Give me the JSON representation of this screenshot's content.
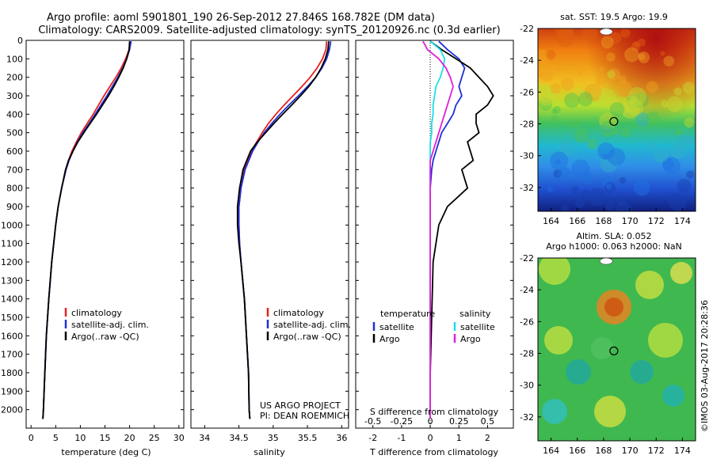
{
  "header": {
    "line1": "Argo profile: aoml 5901801_190 26-Sep-2012 27.846S 168.782E (DM data)",
    "line2": "Climatology: CARS2009. Satellite-adjusted climatology: synTS_20120926.nc (0.3d earlier)"
  },
  "credit": "US ARGO PROJECT\nPI: DEAN ROEMMICH",
  "credit_lines": [
    "US ARGO PROJECT",
    "PI: DEAN ROEMMICH"
  ],
  "timestamp": "©IMOS 03-Aug-2017 20:28:36",
  "colors": {
    "climatology": "#e8201c",
    "satellite_temp": "#1f2fd6",
    "argo": "#000000",
    "satellite_sal": "#19e0e8",
    "argo_sal": "#e020d8"
  },
  "chart_data": [
    {
      "type": "line",
      "ylim": [
        2100,
        0
      ],
      "ylabel": "",
      "xlabel": "temperature (deg C)",
      "xlim": [
        -1,
        31
      ],
      "xticks": [
        0,
        5,
        10,
        15,
        20,
        25,
        30
      ],
      "yticks": [
        0,
        100,
        200,
        300,
        400,
        500,
        600,
        700,
        800,
        900,
        1000,
        1100,
        1200,
        1300,
        1400,
        1500,
        1600,
        1700,
        1800,
        1900,
        2000
      ],
      "legend": [
        "climatology",
        "satellite-adj. clim.",
        "Argo(..raw -QC)"
      ],
      "legend_position": "lower-left",
      "depth": [
        5,
        50,
        100,
        150,
        200,
        250,
        300,
        350,
        400,
        450,
        500,
        550,
        600,
        650,
        700,
        800,
        900,
        1000,
        1100,
        1200,
        1400,
        1600,
        1800,
        2000,
        2050
      ],
      "series": [
        {
          "name": "climatology",
          "values": [
            20.1,
            19.9,
            19.2,
            18.3,
            17.2,
            16.0,
            14.8,
            13.7,
            12.6,
            11.4,
            10.2,
            9.2,
            8.3,
            7.6,
            7.0,
            6.2,
            5.5,
            5.0,
            4.6,
            4.2,
            3.6,
            3.1,
            2.8,
            2.5,
            2.4
          ]
        },
        {
          "name": "satellite-adj. clim.",
          "values": [
            20.3,
            20.0,
            19.4,
            18.6,
            17.6,
            16.5,
            15.4,
            14.2,
            13.0,
            11.8,
            10.5,
            9.4,
            8.5,
            7.7,
            7.1,
            6.2,
            5.5,
            5.0,
            4.6,
            4.2,
            3.6,
            3.1,
            2.8,
            2.5,
            2.4
          ]
        },
        {
          "name": "Argo(..raw -QC)",
          "values": [
            20.0,
            19.9,
            19.4,
            18.7,
            17.8,
            16.8,
            15.7,
            14.5,
            13.3,
            12.0,
            10.7,
            9.5,
            8.5,
            7.6,
            7.0,
            6.2,
            5.5,
            5.0,
            4.6,
            4.2,
            3.6,
            3.1,
            2.8,
            2.5,
            2.4
          ]
        }
      ]
    },
    {
      "type": "line",
      "ylim": [
        2100,
        0
      ],
      "xlabel": "salinity",
      "xlim": [
        33.8,
        36.1
      ],
      "xticks": [
        34,
        34.5,
        35,
        35.5,
        36
      ],
      "legend": [
        "climatology",
        "satellite-adj. clim.",
        "Argo(..raw -QC)"
      ],
      "legend_position": "lower-left",
      "depth": [
        5,
        50,
        100,
        150,
        200,
        250,
        300,
        350,
        400,
        450,
        500,
        550,
        600,
        700,
        800,
        900,
        1000,
        1100,
        1200,
        1400,
        1600,
        1800,
        2000,
        2050
      ],
      "series": [
        {
          "name": "climatology",
          "values": [
            35.78,
            35.77,
            35.72,
            35.64,
            35.54,
            35.42,
            35.29,
            35.16,
            35.04,
            34.93,
            34.84,
            34.76,
            34.68,
            34.58,
            34.53,
            34.5,
            34.5,
            34.51,
            34.53,
            34.58,
            34.61,
            34.64,
            34.65,
            34.66
          ]
        },
        {
          "name": "satellite-adj. clim.",
          "values": [
            35.84,
            35.82,
            35.78,
            35.71,
            35.62,
            35.5,
            35.37,
            35.23,
            35.1,
            34.98,
            34.87,
            34.78,
            34.7,
            34.59,
            34.53,
            34.5,
            34.5,
            34.51,
            34.53,
            34.58,
            34.61,
            34.64,
            34.65,
            34.66
          ]
        },
        {
          "name": "Argo(..raw -QC)",
          "values": [
            35.81,
            35.8,
            35.76,
            35.7,
            35.62,
            35.52,
            35.4,
            35.27,
            35.14,
            35.01,
            34.89,
            34.77,
            34.67,
            34.56,
            34.51,
            34.48,
            34.48,
            34.5,
            34.53,
            34.58,
            34.61,
            34.64,
            34.65,
            34.66
          ]
        }
      ]
    },
    {
      "type": "line",
      "ylim": [
        2100,
        0
      ],
      "xlabel": "T difference from climatology",
      "xlabel_top": "S difference from climatology",
      "xlim": [
        -2.6,
        2.9
      ],
      "xticks": [
        -2,
        -1,
        0,
        1,
        2
      ],
      "s_ticks": [
        "-0.5",
        "-0.25",
        "0",
        "0.25",
        "0.5"
      ],
      "legend_headers": [
        "temperature",
        "salinity"
      ],
      "legend": [
        "satellite",
        "Argo",
        "satellite",
        "Argo"
      ],
      "depth": [
        5,
        50,
        100,
        150,
        200,
        250,
        300,
        350,
        400,
        450,
        500,
        550,
        600,
        650,
        700,
        800,
        900,
        1000,
        1200,
        1500,
        1800,
        2050
      ],
      "series": [
        {
          "name": "satellite",
          "values": [
            0.3,
            0.6,
            1.0,
            1.2,
            1.1,
            1.0,
            1.1,
            0.9,
            0.8,
            0.6,
            0.4,
            0.3,
            0.2,
            0.1,
            0.05,
            0.0,
            0.0,
            0.0,
            0.0,
            0.0,
            0.0,
            0.0
          ]
        },
        {
          "name": "Argo",
          "values": [
            0.0,
            0.4,
            0.9,
            1.4,
            1.7,
            2.0,
            2.2,
            2.0,
            1.6,
            1.6,
            1.7,
            1.3,
            1.4,
            1.5,
            1.1,
            1.3,
            0.6,
            0.3,
            0.1,
            0.05,
            0.0,
            0.0
          ]
        },
        {
          "name": "satellite",
          "values": [
            0.0,
            0.35,
            0.5,
            0.45,
            0.35,
            0.2,
            0.15,
            0.1,
            0.1,
            0.05,
            0.05,
            0.0,
            0.0,
            0.0,
            0.0,
            0.0,
            0.0,
            0.0,
            0.0,
            0.0,
            0.0,
            0.0
          ]
        },
        {
          "name": "Argo",
          "values": [
            -0.25,
            -0.1,
            0.3,
            0.55,
            0.7,
            0.8,
            0.7,
            0.6,
            0.5,
            0.4,
            0.3,
            0.2,
            0.1,
            0.0,
            0.0,
            0.0,
            0.0,
            0.0,
            0.0,
            0.0,
            0.0,
            0.0
          ]
        }
      ]
    },
    {
      "type": "heatmap",
      "title": "sat. SST: 19.5 Argo: 19.9",
      "xlim": [
        163,
        175
      ],
      "ylim": [
        -33.5,
        -22
      ],
      "xticks": [
        164,
        166,
        168,
        170,
        172,
        174
      ],
      "yticks": [
        -22,
        -24,
        -26,
        -28,
        -30,
        -32
      ],
      "marker": {
        "lon": 168.782,
        "lat": -27.846
      }
    },
    {
      "type": "heatmap",
      "title": "Altim. SLA: 0.052",
      "subtitle": "Argo h1000: 0.063 h2000: NaN",
      "xlim": [
        163,
        175
      ],
      "ylim": [
        -33.5,
        -22
      ],
      "xticks": [
        164,
        166,
        168,
        170,
        172,
        174
      ],
      "yticks": [
        -22,
        -24,
        -26,
        -28,
        -30,
        -32
      ],
      "marker": {
        "lon": 168.782,
        "lat": -27.846
      }
    }
  ]
}
